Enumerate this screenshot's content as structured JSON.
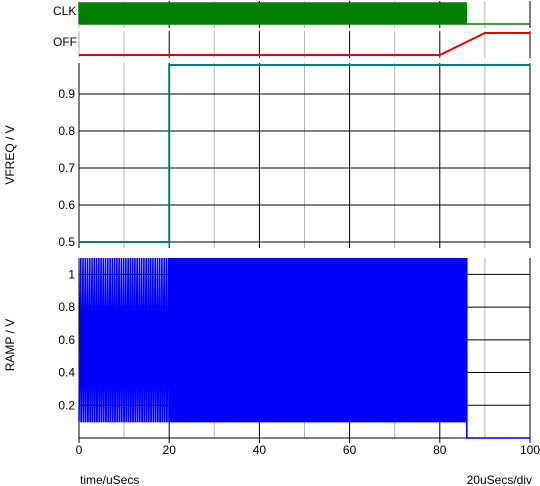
{
  "chart_data": [
    {
      "type": "line",
      "subtype": "digital",
      "label": "CLK",
      "x_range": [
        0,
        100
      ],
      "segments": [
        {
          "x": [
            0,
            20
          ],
          "pattern": "square wave, about 2 pulses per uSec",
          "color": "#008000"
        },
        {
          "x": [
            20,
            86
          ],
          "pattern": "square wave, about 4.5 pulses per uSec",
          "color": "#008000"
        },
        {
          "x": [
            86,
            100
          ],
          "pattern": "constant low",
          "color": "#008000"
        }
      ]
    },
    {
      "type": "line",
      "subtype": "digital",
      "label": "OFF",
      "x_range": [
        0,
        100
      ],
      "series": [
        {
          "color": "#e00000",
          "x": [
            0,
            80,
            90,
            100
          ],
          "y": [
            0,
            0,
            1,
            1
          ]
        }
      ]
    },
    {
      "type": "line",
      "ylabel": "VFREQ / V",
      "xlim": [
        0,
        100
      ],
      "ylim": [
        0.5,
        1.0
      ],
      "yticks": [
        "0.5",
        "0.6",
        "0.7",
        "0.8",
        "0.9"
      ],
      "grid": true,
      "series": [
        {
          "color": "#008080",
          "x": [
            0,
            20,
            20,
            100
          ],
          "y": [
            0.5,
            0.5,
            1.0,
            1.0
          ]
        }
      ]
    },
    {
      "type": "line",
      "ylabel": "RAMP / V",
      "xlabel": "time/uSecs",
      "scale_note": "20uSecs/div",
      "xlim": [
        0,
        100
      ],
      "ylim": [
        0,
        1.1
      ],
      "xticks": [
        "0",
        "20",
        "40",
        "60",
        "80",
        "100"
      ],
      "yticks": [
        "0.2",
        "0.4",
        "0.6",
        "0.8",
        "1"
      ],
      "grid": true,
      "series": [
        {
          "color": "#0000ff",
          "description": "sawtooth oscillation between 0.1 and 1.1 V",
          "segments": [
            {
              "x": [
                0,
                20
              ],
              "frequency_per_usec": 2.0,
              "y_min": 0.1,
              "y_max": 1.1
            },
            {
              "x": [
                20,
                86
              ],
              "frequency_per_usec": 4.5,
              "y_min": 0.1,
              "y_max": 1.1
            },
            {
              "x": [
                86,
                100
              ],
              "y": 0.0
            }
          ]
        }
      ]
    }
  ]
}
